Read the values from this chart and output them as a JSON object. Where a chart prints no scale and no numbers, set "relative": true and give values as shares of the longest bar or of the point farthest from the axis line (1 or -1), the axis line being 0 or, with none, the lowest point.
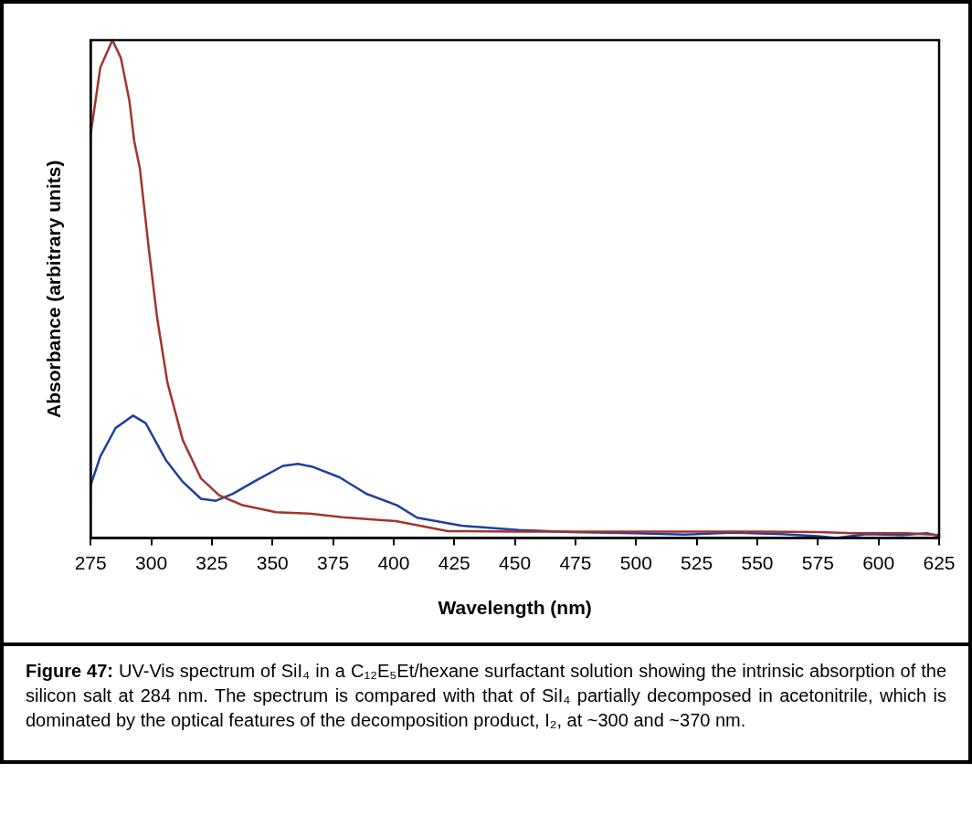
{
  "chart_data": {
    "type": "line",
    "relative": true,
    "xlabel": "Wavelength (nm)",
    "ylabel": "Absorbance (arbitrary units)",
    "xlim": [
      275,
      625
    ],
    "xticks": [
      275,
      300,
      325,
      350,
      375,
      400,
      425,
      450,
      475,
      500,
      525,
      550,
      575,
      600,
      625
    ],
    "grid": false,
    "legend": false,
    "marker": "none",
    "line_style": "solid",
    "annotations": [
      "Figure 47: UV-Vis spectrum of SiI₄ in a C₁₂E₅Et/hexane surfactant solution showing the intrinsic absorption of the silicon salt at 284 nm. The spectrum is compared with that of SiI₄ partially decomposed in acetonitrile, which is dominated by the optical features of the decomposition product, I₂, at ~300 and ~370 nm."
    ],
    "series": [
      {
        "color": "#a3342c",
        "x": [
          275,
          279,
          284,
          287.5,
          291,
          293,
          295.3,
          299,
          302.5,
          306.7,
          313,
          320.5,
          328,
          337.7,
          351.5,
          365.3,
          379,
          392.8,
          401,
          422.4,
          450,
          500,
          550,
          575,
          590,
          600,
          612,
          625
        ],
        "values": [
          0.81,
          0.945,
          1,
          0.964,
          0.878,
          0.797,
          0.743,
          0.581,
          0.44,
          0.312,
          0.197,
          0.12,
          0.086,
          0.066,
          0.052,
          0.049,
          0.042,
          0.037,
          0.034,
          0.014,
          0.013,
          0.013,
          0.013,
          0.012,
          0.01,
          0.01,
          0.01,
          0.006
        ]
      },
      {
        "color": "#1f3f9f",
        "x": [
          275,
          279,
          285.3,
          292.5,
          297.7,
          306,
          313,
          320.5,
          326.7,
          333.6,
          343.3,
          354.3,
          360.5,
          366.7,
          377.7,
          388.7,
          401.4,
          409.7,
          428,
          451.6,
          473.4,
          500,
          520,
          540,
          560,
          575,
          582.5,
          595,
          610,
          620,
          625
        ],
        "values": [
          0.106,
          0.164,
          0.221,
          0.246,
          0.231,
          0.157,
          0.113,
          0.079,
          0.075,
          0.089,
          0.116,
          0.145,
          0.149,
          0.143,
          0.122,
          0.089,
          0.066,
          0.041,
          0.025,
          0.016,
          0.012,
          0.01,
          0.007,
          0.011,
          0.008,
          0.004,
          0,
          0.008,
          0.006,
          0.01,
          0.004
        ]
      }
    ]
  }
}
